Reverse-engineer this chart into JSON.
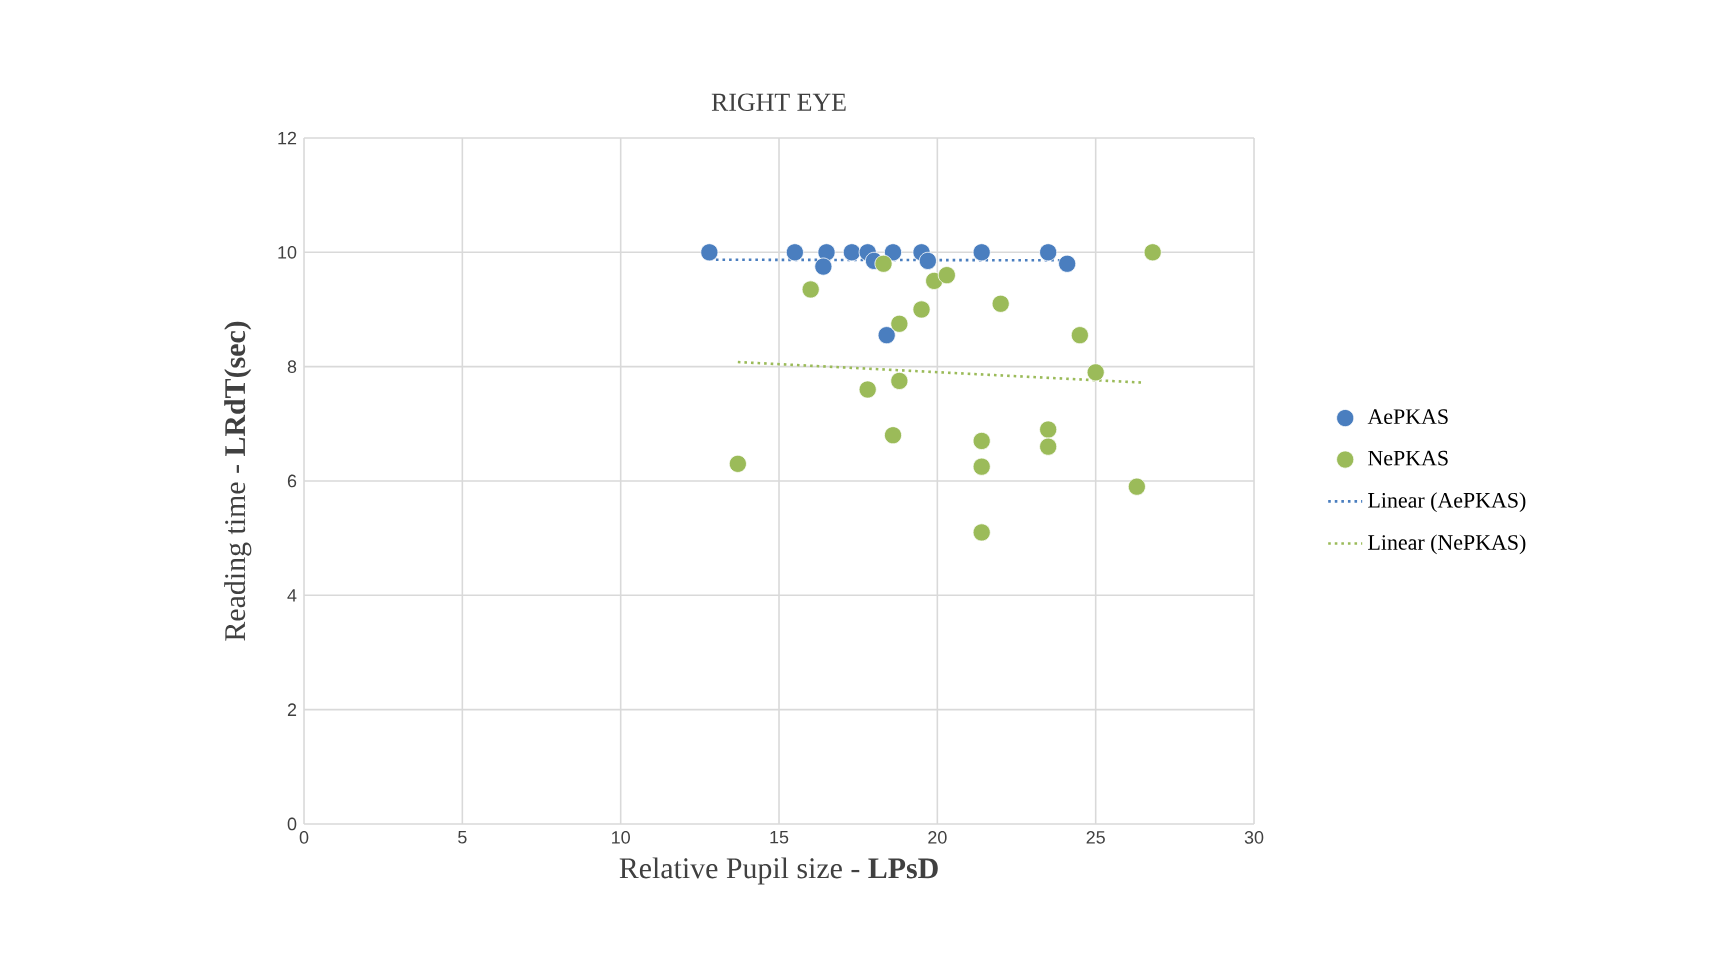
{
  "chart_data": {
    "type": "scatter",
    "title": "RIGHT EYE",
    "xlabel": "Relative Pupil size  - **LPsD**",
    "ylabel": "Reading time - **LRdT(sec)**",
    "xlim": [
      0,
      30
    ],
    "xticks": [
      0,
      5,
      10,
      15,
      20,
      25,
      30
    ],
    "ylim": [
      0,
      12
    ],
    "yticks": [
      0,
      2,
      4,
      6,
      8,
      10,
      12
    ],
    "grid": true,
    "legend": "right",
    "series": [
      {
        "name": "AePKAS",
        "color": "#4a7ebf",
        "marker": "circle",
        "x": [
          12.8,
          15.5,
          16.5,
          16.4,
          17.3,
          17.8,
          18.0,
          18.6,
          18.4,
          19.5,
          19.7,
          21.4,
          23.5,
          24.1
        ],
        "values": [
          10,
          10,
          10,
          9.75,
          10,
          10,
          9.85,
          10,
          8.55,
          10,
          9.85,
          10,
          10,
          9.8
        ]
      },
      {
        "name": "NePKAS",
        "color": "#9bbb59",
        "marker": "circle",
        "x": [
          18.3,
          16.0,
          19.9,
          20.3,
          19.5,
          22.0,
          18.8,
          24.5,
          26.8,
          25.0,
          18.8,
          17.8,
          18.6,
          13.7,
          21.4,
          21.4,
          23.5,
          23.5,
          26.3,
          21.4
        ],
        "values": [
          9.8,
          9.35,
          9.5,
          9.6,
          9.0,
          9.1,
          8.75,
          8.55,
          10,
          7.9,
          7.75,
          7.6,
          6.8,
          6.3,
          6.7,
          6.25,
          6.9,
          6.6,
          5.9,
          5.1
        ]
      },
      {
        "name": "Linear (AePKAS)",
        "type": "line",
        "color": "#4a7ebf",
        "marker": "none",
        "line_style": "dotted",
        "x": [
          12.8,
          24.1
        ],
        "values": [
          9.87,
          9.86
        ]
      },
      {
        "name": "Linear (NePKAS)",
        "type": "line",
        "color": "#9bbb59",
        "marker": "none",
        "line_style": "dotted",
        "x": [
          13.7,
          26.5
        ],
        "values": [
          8.08,
          7.72
        ]
      }
    ]
  }
}
